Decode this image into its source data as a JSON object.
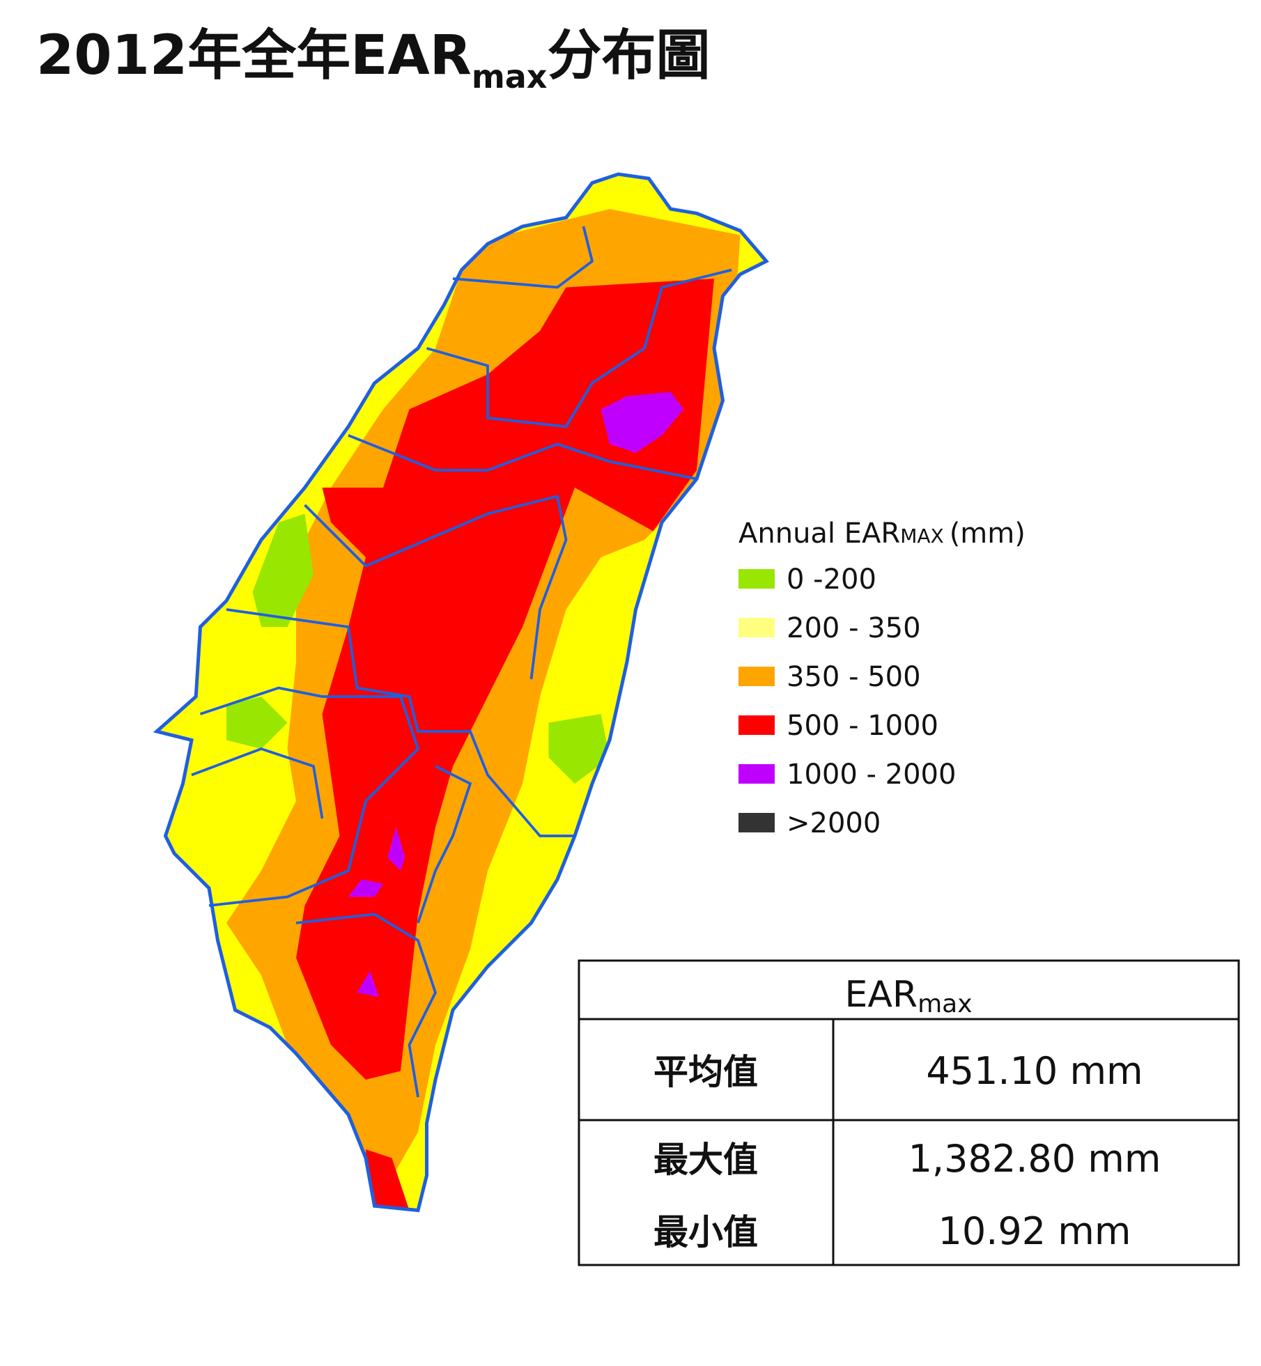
{
  "title": {
    "main": "2012年全年EAR",
    "subscript": "max",
    "suffix": "分布圖"
  },
  "legend": {
    "title": "Annual EAR",
    "title_subscript": "MAX",
    "title_unit": "(mm)",
    "items": [
      {
        "label": "0 -200",
        "color": "#99e600"
      },
      {
        "label": "200 - 350",
        "color": "#ffff80"
      },
      {
        "label": "350 - 500",
        "color": "#ffa500"
      },
      {
        "label": "500 - 1000",
        "color": "#ff0000"
      },
      {
        "label": "1000 - 2000",
        "color": "#c000ff"
      },
      {
        "label": ">2000",
        "color": "#333333"
      }
    ]
  },
  "table": {
    "header": "EAR",
    "header_subscript": "max",
    "rows": [
      [
        "平均值",
        "451.10 mm"
      ],
      [
        "最大值",
        "1,382.80 mm"
      ],
      [
        "最小值",
        "10.92 mm"
      ]
    ]
  }
}
